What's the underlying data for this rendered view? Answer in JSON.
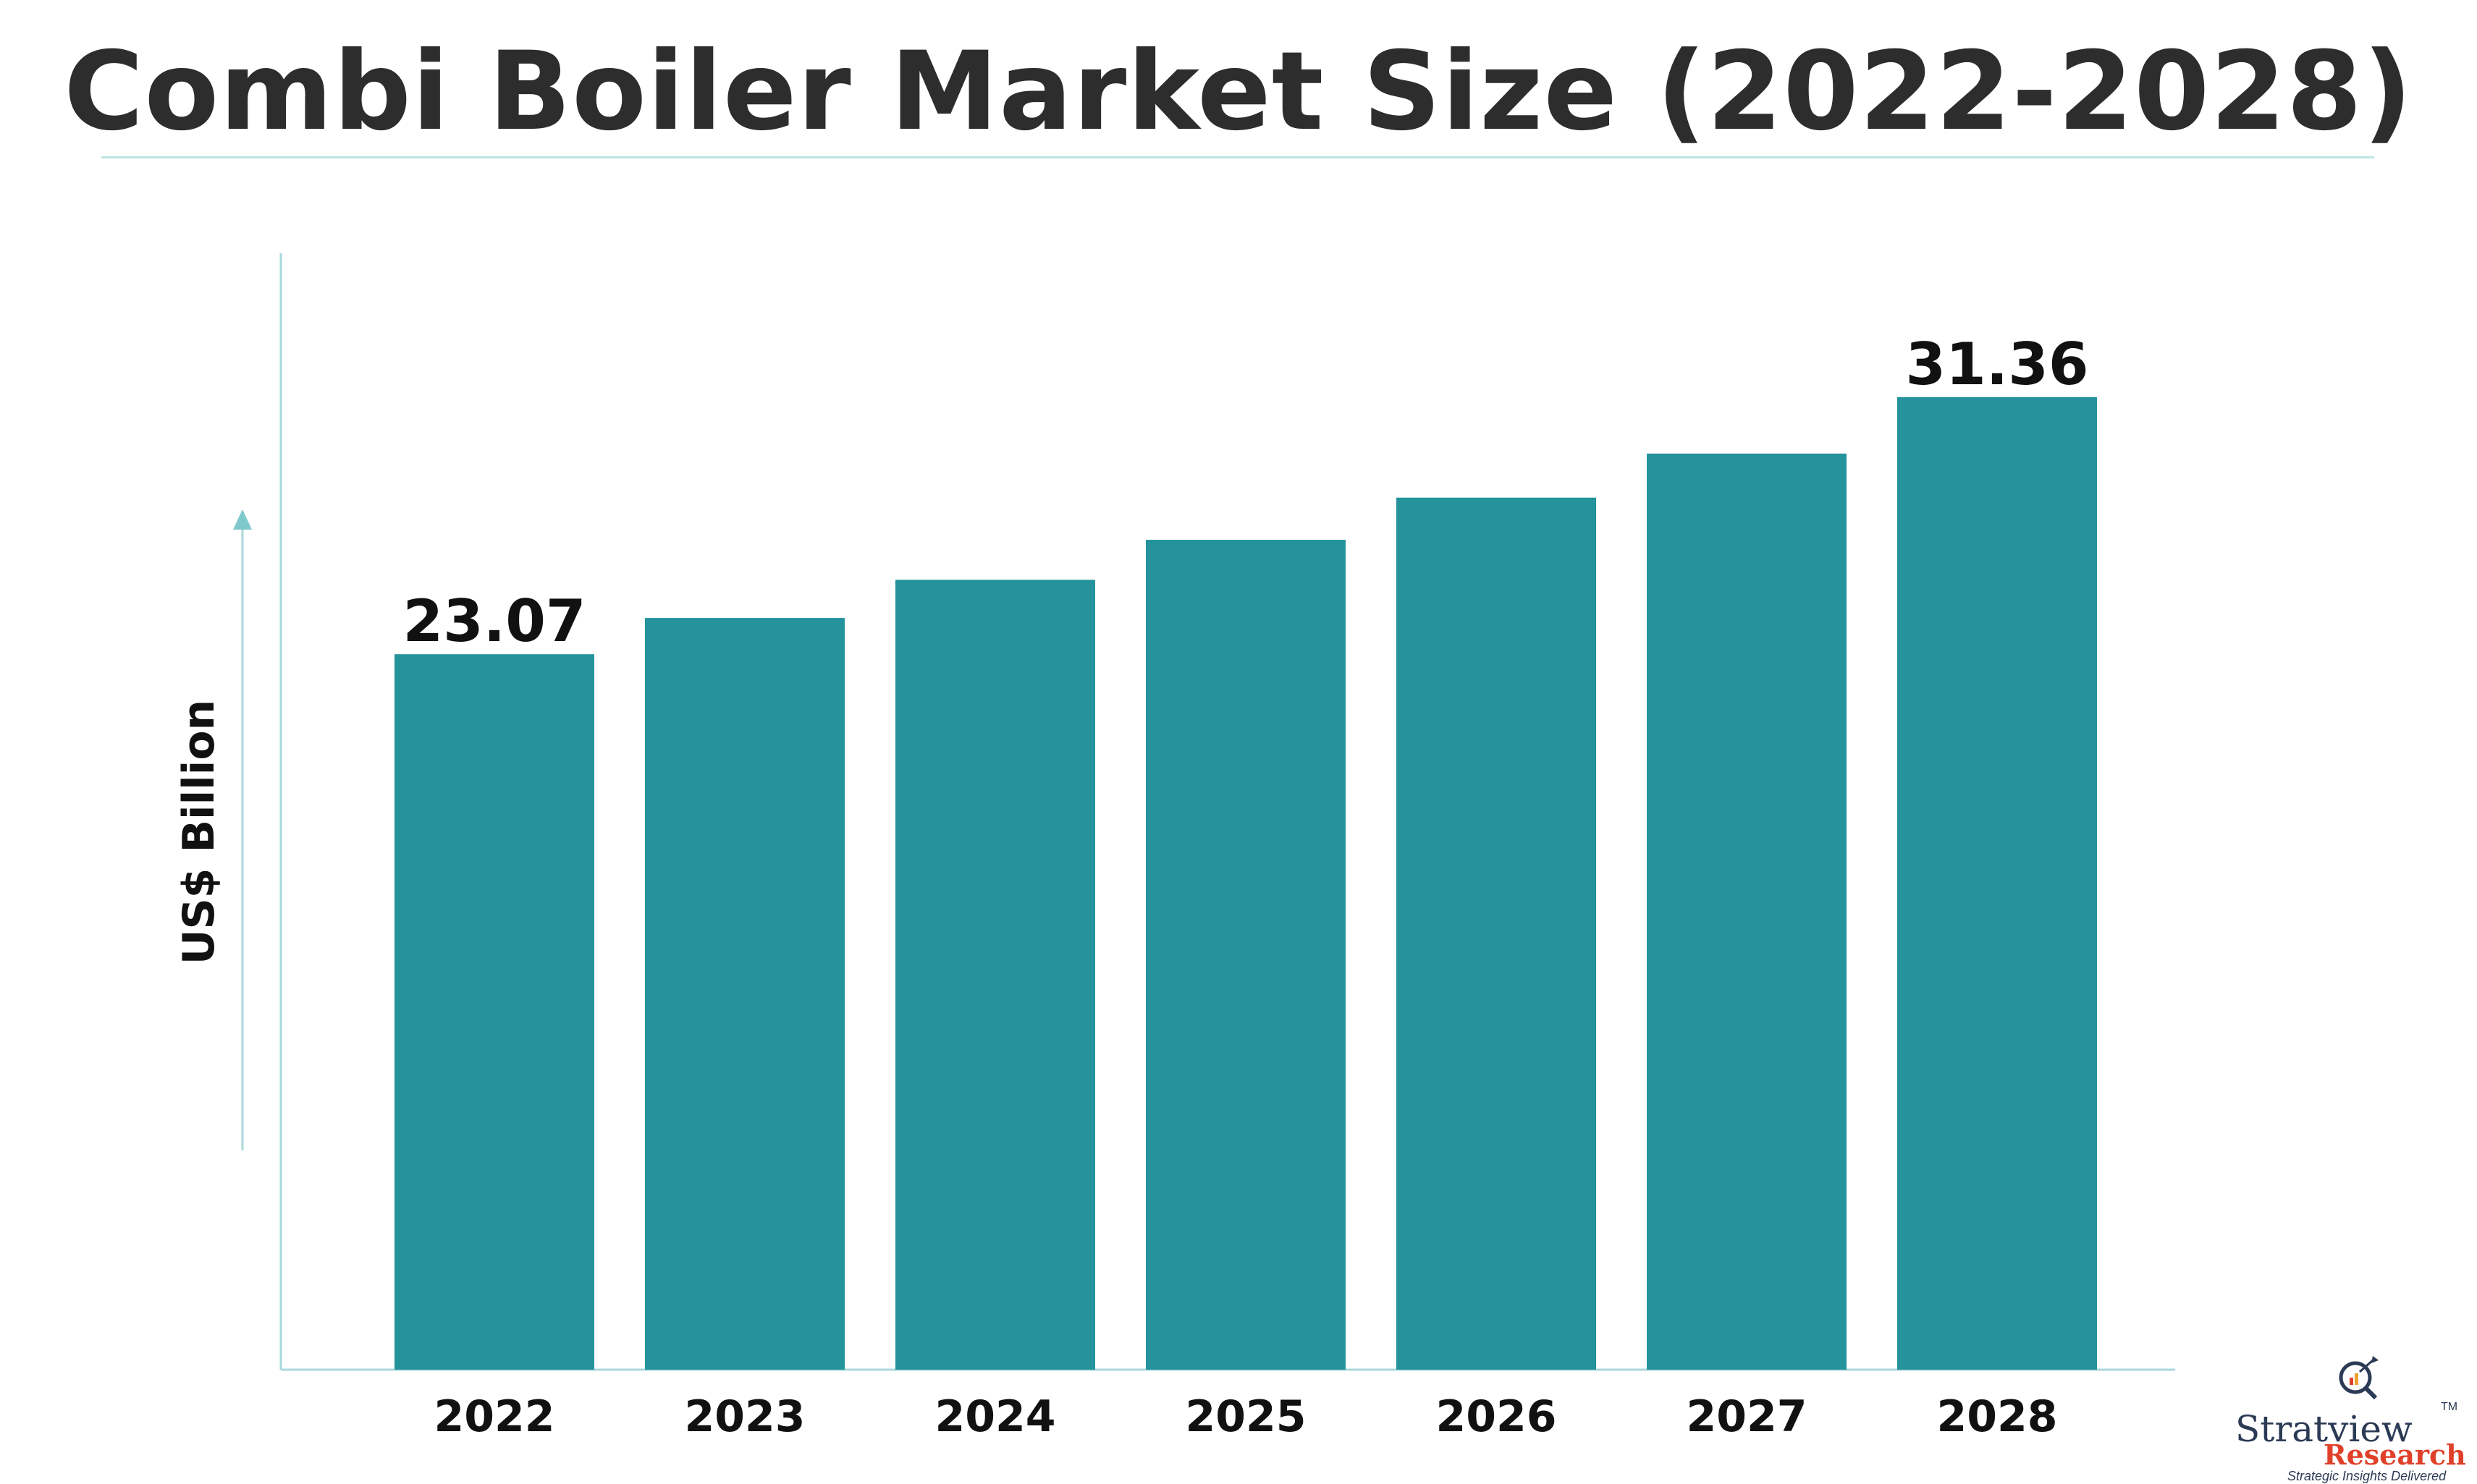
{
  "chart_data": {
    "type": "bar",
    "title": "Combi Boiler Market Size (2022-2028)",
    "ylabel": "US$ Billion",
    "xlabel": "",
    "categories": [
      "2022",
      "2023",
      "2024",
      "2025",
      "2026",
      "2027",
      "2028"
    ],
    "values": [
      23.07,
      24.24,
      25.47,
      26.76,
      28.12,
      29.54,
      31.36
    ],
    "data_labels": [
      {
        "category": "2022",
        "text": "23.07"
      },
      {
        "category": "2028",
        "text": "31.36"
      }
    ],
    "ylim": [
      0,
      36
    ],
    "grid": false,
    "legend": "none",
    "bar_color": "#24939b",
    "axis_color": "#a9d8db"
  },
  "branding": {
    "brand": "Stratview",
    "tm": "TM",
    "sub": "Research",
    "tagline": "Strategic Insights Delivered",
    "icon": "magnifier-chart-icon"
  }
}
